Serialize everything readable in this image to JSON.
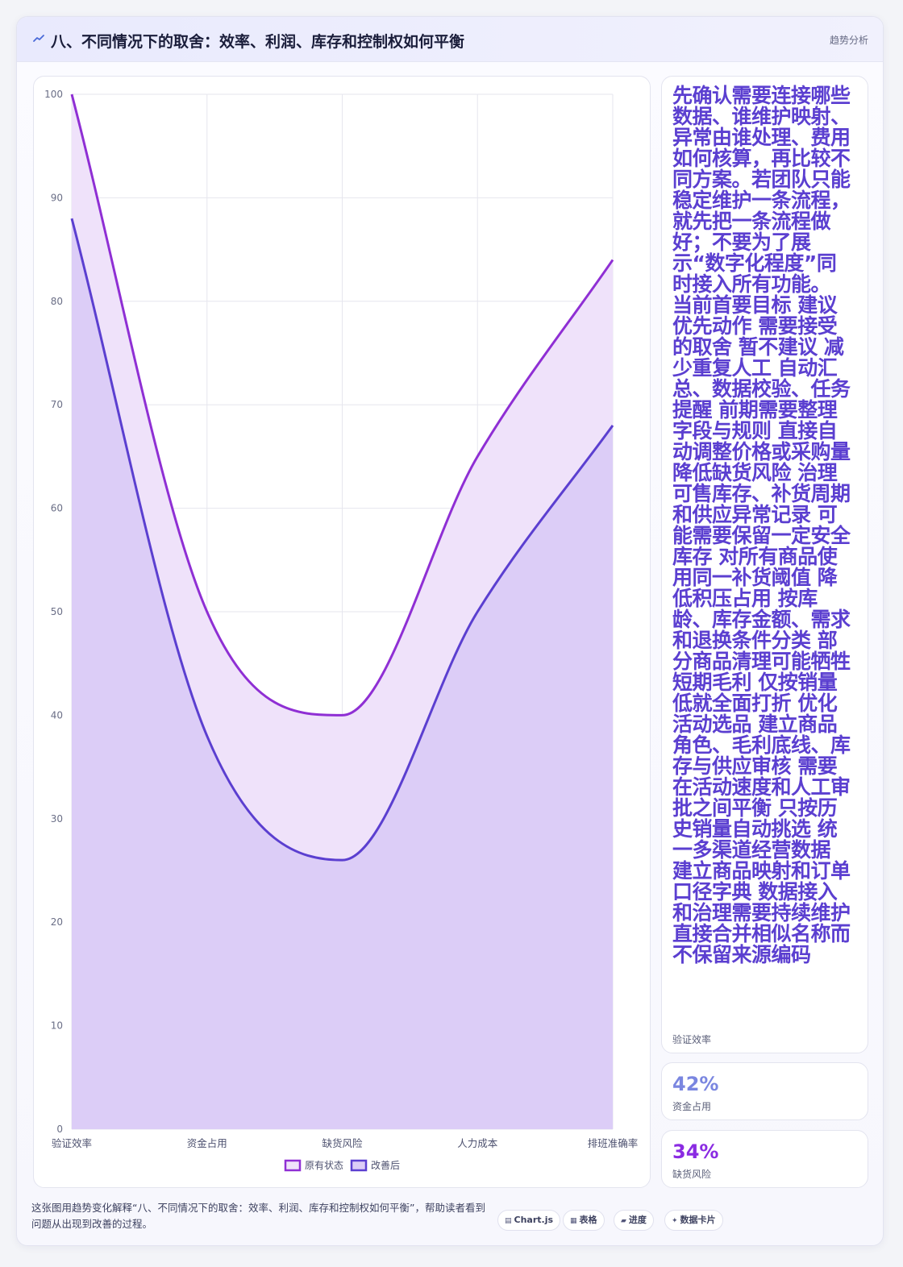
{
  "header": {
    "title": "八、不同情况下的取舍：效率、利润、库存和控制权如何平衡",
    "tag": "趋势分析"
  },
  "colors": {
    "original": "#8f2fd4",
    "original_fill": "#efe2fa",
    "improved": "#5b3fd0",
    "improved_fill": "#dccdf7",
    "grid": "#e6e6ee",
    "accent_blue": "#7a86e0",
    "accent_purple": "#8a2be2"
  },
  "chart_data": {
    "type": "area",
    "categories": [
      "验证效率",
      "资金占用",
      "缺货风险",
      "人力成本",
      "排班准确率"
    ],
    "series": [
      {
        "name": "原有状态",
        "values": [
          100,
          50,
          40,
          65,
          84
        ]
      },
      {
        "name": "改善后",
        "values": [
          88,
          38,
          26,
          50,
          68
        ]
      }
    ],
    "ylim": [
      0,
      100
    ],
    "yticks": [
      0,
      10,
      20,
      30,
      40,
      50,
      60,
      70,
      80,
      90,
      100
    ],
    "legend_position": "bottom",
    "grid": true,
    "smooth": true
  },
  "side": {
    "main_text": "先确认需要连接哪些数据、谁维护映射、异常由谁处理、费用如何核算，再比较不同方案。若团队只能稳定维护一条流程，就先把一条流程做好；不要为了展示“数字化程度”同时接入所有功能。 当前首要目标 建议优先动作 需要接受的取舍 暂不建议 减少重复人工 自动汇总、数据校验、任务提醒 前期需要整理字段与规则 直接自动调整价格或采购量 降低缺货风险 治理可售库存、补货周期和供应异常记录 可能需要保留一定安全库存 对所有商品使用同一补货阈值 降低积压占用 按库龄、库存金额、需求和退换条件分类 部分商品清理可能牺牲短期毛利 仅按销量低就全面打折 优化活动选品 建立商品角色、毛利底线、库存与供应审核 需要在活动速度和人工审批之间平衡 只按历史销量自动挑选 统一多渠道经营数据 建立商品映射和订单口径字典 数据接入和治理需要持续维护 直接合并相似名称而不保留来源编码",
    "main_label": "验证效率",
    "stats": [
      {
        "value": "42%",
        "label": "资金占用"
      },
      {
        "value": "34%",
        "label": "缺货风险"
      }
    ]
  },
  "footer": {
    "description": "这张图用趋势变化解释“八、不同情况下的取舍：效率、利润、库存和控制权如何平衡”，帮助读者看到问题从出现到改善的过程。",
    "chips": [
      {
        "icon": "chart-icon",
        "glyph": "▤",
        "label": "Chart.js"
      },
      {
        "icon": "table-icon",
        "glyph": "▦",
        "label": "表格"
      },
      {
        "icon": "progress-icon",
        "glyph": "▰",
        "label": "进度"
      },
      {
        "icon": "cards-icon",
        "glyph": "✦",
        "label": "数据卡片"
      }
    ]
  }
}
